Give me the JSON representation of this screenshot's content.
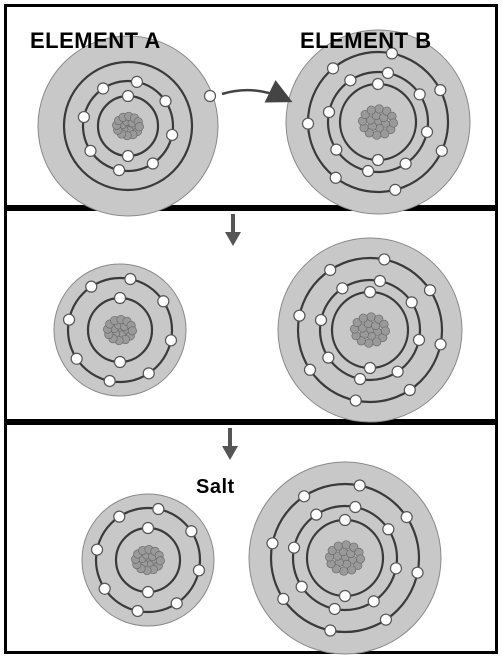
{
  "labels": {
    "element_a": "ELEMENT A",
    "element_b": "ELEMENT B",
    "salt": "Salt"
  },
  "colors": {
    "atom_fill": "#c8c8c8",
    "shell_stroke": "#3a3a3a",
    "electron_fill": "#ffffff",
    "nucleus_fill": "#9a9a9a",
    "arrow": "#444444"
  },
  "atoms": [
    {
      "name": "element-a-atom-panel-1",
      "shells": 2,
      "electrons": [
        2,
        8
      ]
    },
    {
      "name": "element-b-atom-panel-1",
      "shells": 3,
      "electrons": [
        2,
        8,
        7
      ]
    },
    {
      "name": "element-a-ion-panel-2",
      "shells": 2,
      "electrons": [
        2,
        8
      ]
    },
    {
      "name": "element-b-ion-panel-2",
      "shells": 3,
      "electrons": [
        2,
        8,
        8
      ]
    },
    {
      "name": "element-a-ion-panel-3",
      "shells": 2,
      "electrons": [
        2,
        8
      ]
    },
    {
      "name": "element-b-ion-panel-3",
      "shells": 3,
      "electrons": [
        2,
        8,
        8
      ]
    }
  ]
}
